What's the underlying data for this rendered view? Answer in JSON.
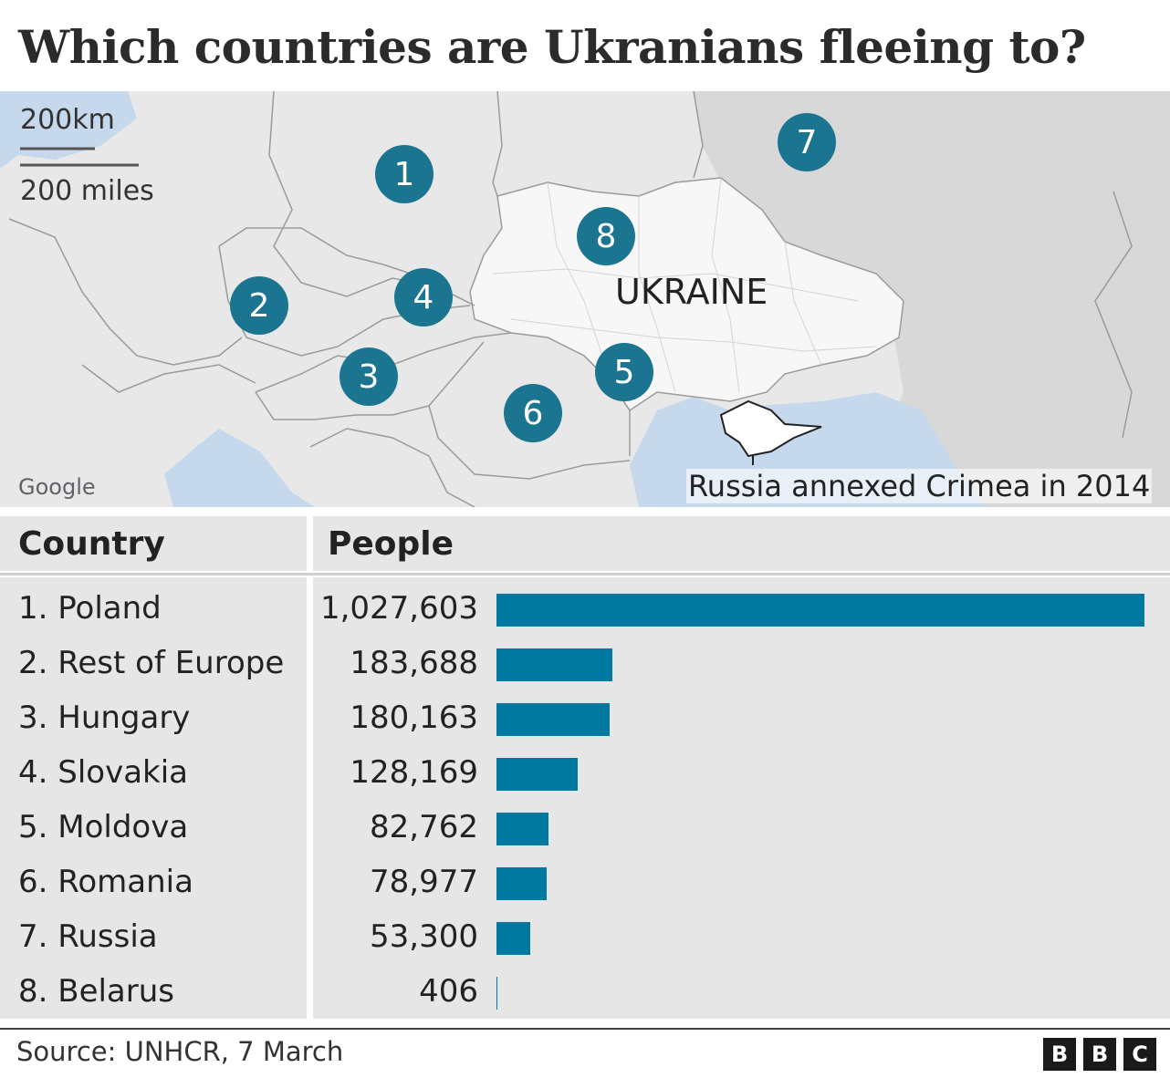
{
  "title": "Which countries are Ukranians fleeing to?",
  "map": {
    "scale_km": "200km",
    "scale_miles": "200 miles",
    "country_label": "UKRAINE",
    "credit": "Google",
    "note": "Russia annexed Crimea in 2014",
    "markers": [
      "1",
      "2",
      "3",
      "4",
      "5",
      "6",
      "7",
      "8"
    ],
    "colors": {
      "marker": "#1b7590",
      "water": "#c6d8ec",
      "land": "#e8e8e8",
      "ukraine": "#f7f7f7",
      "russia": "#d8d8d8"
    }
  },
  "table": {
    "col_country": "Country",
    "col_people": "People"
  },
  "chart_data": {
    "type": "bar",
    "orientation": "horizontal",
    "categories": [
      "1. Poland",
      "2. Rest of Europe",
      "3. Hungary",
      "4. Slovakia",
      "5. Moldova",
      "6. Romania",
      "7. Russia",
      "8. Belarus"
    ],
    "values": [
      1027603,
      183688,
      180163,
      128169,
      82762,
      78977,
      53300,
      406
    ],
    "value_labels": [
      "1,027,603",
      "183,688",
      "180,163",
      "128,169",
      "82,762",
      "78,977",
      "53,300",
      "406"
    ],
    "xlim": [
      0,
      1027603
    ],
    "bar_color": "#0079a0",
    "grid": false
  },
  "footer": {
    "source": "Source: UNHCR, 7 March",
    "logo_letters": [
      "B",
      "B",
      "C"
    ]
  }
}
